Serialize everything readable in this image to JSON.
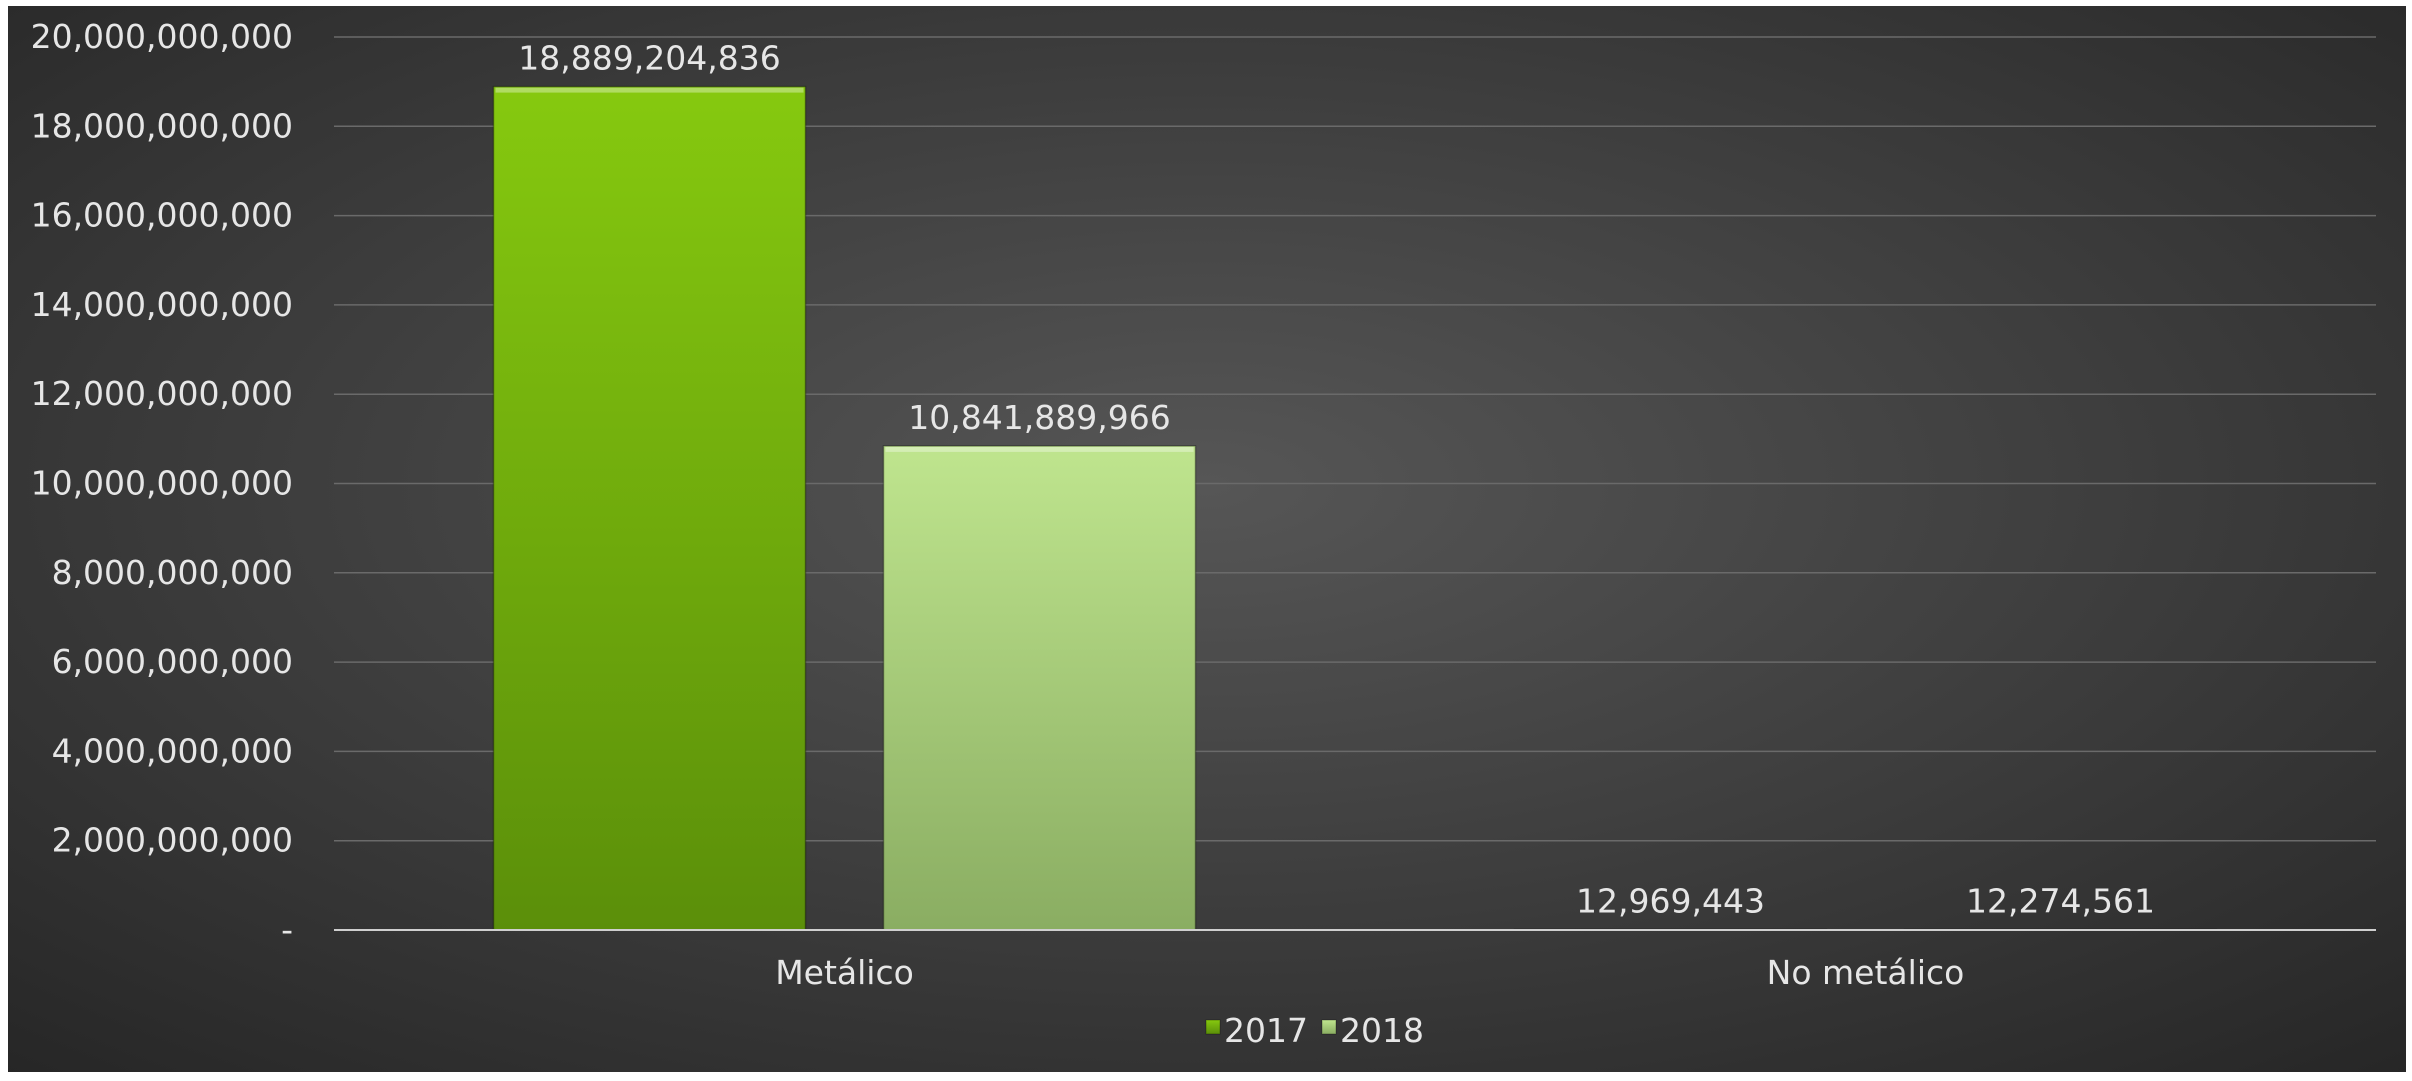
{
  "chart_data": {
    "type": "bar",
    "categories": [
      "Metálico",
      "No metálico"
    ],
    "series": [
      {
        "name": "2017",
        "values": [
          18889204836,
          12969443
        ],
        "labels": [
          "18,889,204,836",
          "12,969,443"
        ],
        "color": "#7cc40e"
      },
      {
        "name": "2018",
        "values": [
          10841889966,
          12274561
        ],
        "labels": [
          "10,841,889,966",
          "12,274,561"
        ],
        "color": "#a9d87d"
      }
    ],
    "title": "",
    "xlabel": "",
    "ylabel": "",
    "ylim": [
      0,
      20000000000
    ],
    "y_ticks": [
      {
        "value": 0,
        "label": "-"
      },
      {
        "value": 2000000000,
        "label": "2,000,000,000"
      },
      {
        "value": 4000000000,
        "label": "4,000,000,000"
      },
      {
        "value": 6000000000,
        "label": "6,000,000,000"
      },
      {
        "value": 8000000000,
        "label": "8,000,000,000"
      },
      {
        "value": 10000000000,
        "label": "10,000,000,000"
      },
      {
        "value": 12000000000,
        "label": "12,000,000,000"
      },
      {
        "value": 14000000000,
        "label": "14,000,000,000"
      },
      {
        "value": 16000000000,
        "label": "16,000,000,000"
      },
      {
        "value": 18000000000,
        "label": "18,000,000,000"
      },
      {
        "value": 20000000000,
        "label": "20,000,000,000"
      }
    ],
    "grid": true,
    "legend": "bottom-center",
    "colors": {
      "background_center": "#565656",
      "background_edge": "#262626",
      "gridline": "#6a6a6a",
      "axis": "#cfcfcf",
      "text": "#e6e6e6"
    }
  }
}
